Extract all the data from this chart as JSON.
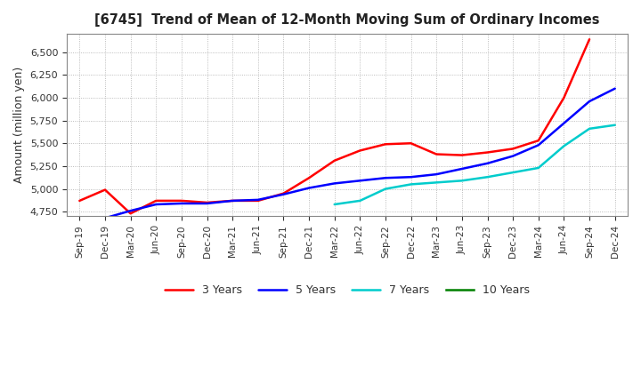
{
  "title": "[6745]  Trend of Mean of 12-Month Moving Sum of Ordinary Incomes",
  "ylabel": "Amount (million yen)",
  "background_color": "#ffffff",
  "grid_color": "#aaaaaa",
  "ylim": [
    4700,
    6700
  ],
  "yticks": [
    4750,
    5000,
    5250,
    5500,
    5750,
    6000,
    6250,
    6500
  ],
  "x_labels": [
    "Sep-19",
    "Dec-19",
    "Mar-20",
    "Jun-20",
    "Sep-20",
    "Dec-20",
    "Mar-21",
    "Jun-21",
    "Sep-21",
    "Dec-21",
    "Mar-22",
    "Jun-22",
    "Sep-22",
    "Dec-22",
    "Mar-23",
    "Jun-23",
    "Sep-23",
    "Dec-23",
    "Mar-24",
    "Jun-24",
    "Sep-24",
    "Dec-24"
  ],
  "y_3yr": [
    4870,
    4990,
    4730,
    4870,
    4870,
    4850,
    4870,
    4870,
    4950,
    5120,
    5310,
    5420,
    5490,
    5500,
    5380,
    5370,
    5400,
    5440,
    5530,
    6000,
    6640,
    null
  ],
  "y_5yr": [
    null,
    4680,
    4760,
    4830,
    4840,
    4840,
    4870,
    4880,
    4940,
    5010,
    5060,
    5090,
    5120,
    5130,
    5160,
    5220,
    5280,
    5360,
    5480,
    5720,
    5960,
    6100
  ],
  "y_7yr": [
    null,
    null,
    null,
    null,
    null,
    null,
    null,
    null,
    null,
    null,
    4830,
    4870,
    5000,
    5050,
    5070,
    5090,
    5130,
    5180,
    5230,
    5470,
    5660,
    5700
  ],
  "y_10yr": [],
  "colors": {
    "3 Years": "#ff0000",
    "5 Years": "#0000ff",
    "7 Years": "#00cccc",
    "10 Years": "#008000"
  }
}
